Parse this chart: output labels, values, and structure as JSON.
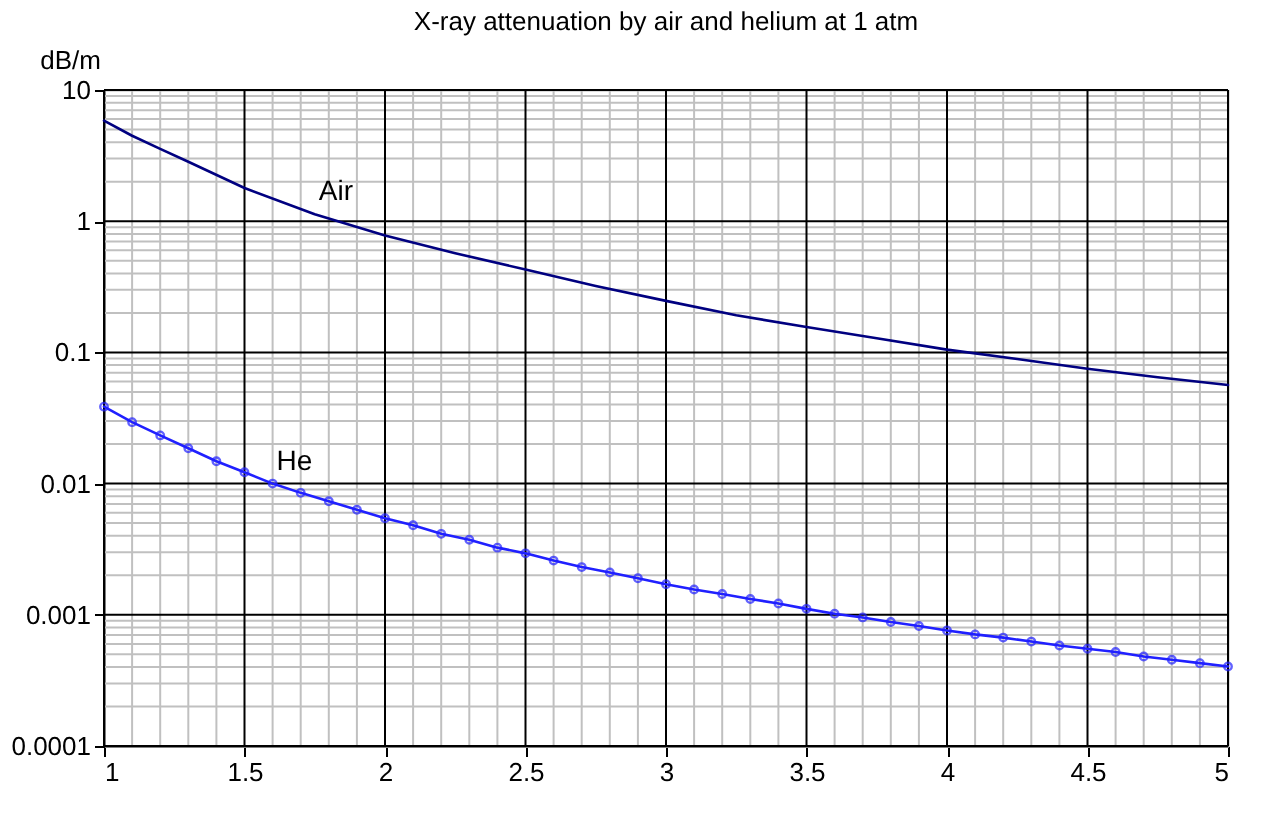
{
  "chart_data": {
    "type": "line",
    "title": "X-ray attenuation by air and helium at 1 atm",
    "ylabel": "dB/m",
    "log": "y",
    "grid": true,
    "xlim": [
      1,
      5
    ],
    "xticks": [
      1,
      1.5,
      2,
      2.5,
      3,
      3.5,
      4,
      4.5,
      5
    ],
    "ylim": [
      0.0001,
      10
    ],
    "yticks": [
      0.0001,
      0.001,
      0.01,
      0.1,
      1,
      10
    ],
    "series": [
      {
        "name": "Air",
        "color": "#000080",
        "marker": "none",
        "line_style": "solid",
        "x": [
          1,
          1.1,
          1.2,
          1.3,
          1.5,
          1.75,
          2,
          2.25,
          2.5,
          2.75,
          3,
          3.25,
          3.5,
          3.75,
          4,
          4.25,
          4.5,
          4.75,
          5
        ],
        "values": [
          5.84,
          4.48,
          3.56,
          2.84,
          1.79,
          1.13,
          0.778,
          0.57,
          0.428,
          0.321,
          0.247,
          0.192,
          0.156,
          0.128,
          0.105,
          0.0891,
          0.0751,
          0.0647,
          0.0564
        ]
      },
      {
        "name": "He",
        "color": "#2020ff",
        "marker": "circle",
        "line_style": "solid",
        "x": [
          1,
          1.1,
          1.2,
          1.3,
          1.4,
          1.5,
          1.6,
          1.7,
          1.8,
          1.9,
          2,
          2.1,
          2.2,
          2.3,
          2.4,
          2.5,
          2.6,
          2.7,
          2.8,
          2.9,
          3,
          3.1,
          3.2,
          3.3,
          3.4,
          3.5,
          3.6,
          3.7,
          3.8,
          3.9,
          4,
          4.1,
          4.2,
          4.3,
          4.4,
          4.5,
          4.6,
          4.7,
          4.8,
          4.9,
          5
        ],
        "values": [
          0.0386,
          0.0294,
          0.0233,
          0.0186,
          0.0148,
          0.0122,
          0.01,
          0.0085,
          0.00734,
          0.00632,
          0.00545,
          0.00481,
          0.00414,
          0.00373,
          0.00325,
          0.00294,
          0.00259,
          0.00231,
          0.0021,
          0.0019,
          0.00171,
          0.00156,
          0.00144,
          0.00132,
          0.00122,
          0.00111,
          0.00102,
          0.000955,
          0.000881,
          0.000822,
          0.00076,
          0.000709,
          0.00067,
          0.000625,
          0.000583,
          0.000551,
          0.00052,
          0.000481,
          0.000454,
          0.000428,
          0.000404
        ]
      }
    ]
  }
}
